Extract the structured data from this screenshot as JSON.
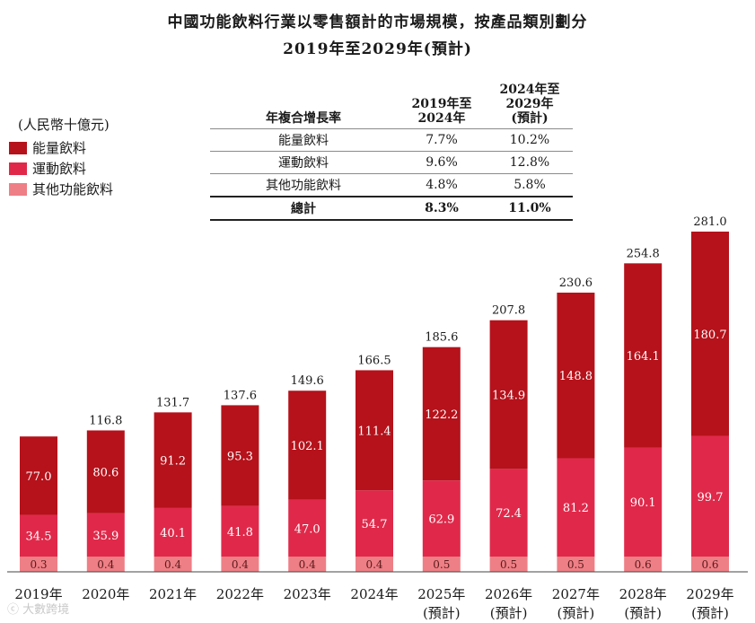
{
  "title_line1": "中國功能飲料行業以零售額計的市場規模，按產品類別劃分",
  "title_line2": "2019年至2029年(預計)",
  "unit_label": "(人民幣十億元)",
  "legend": [
    {
      "label": "能量飲料",
      "color": "#b5121b"
    },
    {
      "label": "運動飲料",
      "color": "#e0294a"
    },
    {
      "label": "其他功能飲料",
      "color": "#ee7f86"
    }
  ],
  "cagr_table": {
    "header": [
      "年複合增長率",
      "2019年至\n2024年",
      "2024年至\n2029年\n(預計)"
    ],
    "rows": [
      [
        "能量飲料",
        "7.7%",
        "10.2%"
      ],
      [
        "運動飲料",
        "9.6%",
        "12.8%"
      ],
      [
        "其他功能飲料",
        "4.8%",
        "5.8%"
      ]
    ],
    "total": [
      "總計",
      "8.3%",
      "11.0%"
    ]
  },
  "chart_data": {
    "type": "bar",
    "stacked": true,
    "categories": [
      "2019年",
      "2020年",
      "2021年",
      "2022年",
      "2023年",
      "2024年",
      "2025年\n(預計)",
      "2026年\n(預計)",
      "2027年\n(預計)",
      "2028年\n(預計)",
      "2029年\n(預計)"
    ],
    "series": [
      {
        "name": "其他功能飲料",
        "values": [
          0.3,
          0.4,
          0.4,
          0.4,
          0.4,
          0.4,
          0.5,
          0.5,
          0.5,
          0.6,
          0.6
        ],
        "labels": [
          "0.3",
          "0.4",
          "0.4",
          "0.4",
          "0.4",
          "0.4",
          "0.5",
          "0.5",
          "0.5",
          "0.6",
          "0.6"
        ]
      },
      {
        "name": "運動飲料",
        "values": [
          34.5,
          35.9,
          40.1,
          41.8,
          47.0,
          54.7,
          62.9,
          72.4,
          81.2,
          90.1,
          99.7
        ],
        "labels": [
          "34.5",
          "35.9",
          "40.1",
          "41.8",
          "47.0",
          "54.7",
          "62.9",
          "72.4",
          "81.2",
          "90.1",
          "99.7"
        ]
      },
      {
        "name": "能量飲料",
        "values": [
          77.0,
          80.6,
          91.2,
          95.3,
          102.1,
          111.4,
          122.2,
          134.9,
          148.8,
          164.1,
          180.7
        ],
        "labels": [
          "77.0",
          "80.6",
          "91.2",
          "95.3",
          "102.1",
          "111.4",
          "122.2",
          "134.9",
          "148.8",
          "164.1",
          "180.7"
        ]
      }
    ],
    "totals": [
      111.8,
      116.8,
      131.7,
      137.6,
      149.6,
      166.5,
      185.6,
      207.8,
      230.6,
      254.8,
      281.0
    ],
    "total_labels": [
      "",
      "116.8",
      "131.7",
      "137.6",
      "149.6",
      "166.5",
      "185.6",
      "207.8",
      "230.6",
      "254.8",
      "281.0"
    ],
    "title": "中國功能飲料行業以零售額計的市場規模，按產品類別劃分",
    "ylabel": "(人民幣十億元)",
    "ylim": [
      0,
      281
    ]
  },
  "watermark": "大數跨境"
}
